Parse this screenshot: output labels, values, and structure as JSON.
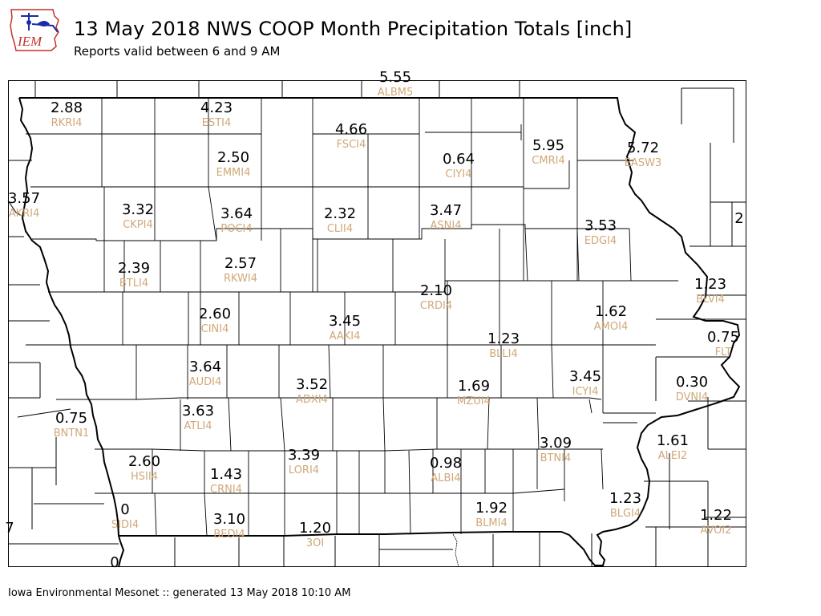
{
  "header": {
    "title": "13 May 2018 NWS COOP Month Precipitation Totals [inch]",
    "subtitle": "Reports valid between 6 and 9 AM"
  },
  "logo": {
    "name": "IEM",
    "icon": "iowa-outline-logo-icon",
    "color": "#1a2aa8",
    "accent": "#c0342a"
  },
  "footer": {
    "text": "Iowa Environmental Mesonet :: generated 13 May 2018 10:10 AM"
  },
  "colors": {
    "value": "#000000",
    "station": "#d0a878"
  },
  "stations": [
    {
      "value": "2.88",
      "id": "RKRI4"
    },
    {
      "value": "4.23",
      "id": "ESTI4"
    },
    {
      "value": "4.66",
      "id": "FSCI4"
    },
    {
      "value": "2.50",
      "id": "EMMI4"
    },
    {
      "value": "0.64",
      "id": "CIYI4"
    },
    {
      "value": "5.95",
      "id": "CMRI4"
    },
    {
      "value": "5.72",
      "id": "EASW3"
    },
    {
      "value": "3.57",
      "id": "AKRI4"
    },
    {
      "value": "3.32",
      "id": "CKPI4"
    },
    {
      "value": "3.64",
      "id": "POCI4"
    },
    {
      "value": "2.32",
      "id": "CLII4"
    },
    {
      "value": "3.47",
      "id": "ASNI4"
    },
    {
      "value": "3.53",
      "id": "EDGI4"
    },
    {
      "value": "2.39",
      "id": "BTLI4"
    },
    {
      "value": "2.57",
      "id": "RKWI4"
    },
    {
      "value": "2.10",
      "id": "CRDI4"
    },
    {
      "value": "1.23",
      "id": "BLVI4"
    },
    {
      "value": "2.60",
      "id": "CINI4"
    },
    {
      "value": "3.45",
      "id": "AAKI4"
    },
    {
      "value": "1.62",
      "id": "AMOI4"
    },
    {
      "value": "1.23",
      "id": "BLLI4"
    },
    {
      "value": "0.75",
      "id": "FLT"
    },
    {
      "value": "3.64",
      "id": "AUDI4"
    },
    {
      "value": "3.52",
      "id": "ADXI4"
    },
    {
      "value": "1.69",
      "id": "MZUI4"
    },
    {
      "value": "3.45",
      "id": "ICYI4"
    },
    {
      "value": "0.30",
      "id": "DVNI4"
    },
    {
      "value": "3.63",
      "id": "ATLI4"
    },
    {
      "value": "0.75",
      "id": "BNTN1"
    },
    {
      "value": "3.09",
      "id": "BTNI4"
    },
    {
      "value": "1.61",
      "id": "ALEI2"
    },
    {
      "value": "2.60",
      "id": "HSII4"
    },
    {
      "value": "1.43",
      "id": "CRNI4"
    },
    {
      "value": "3.39",
      "id": "LORI4"
    },
    {
      "value": "0.98",
      "id": "ALBI4"
    },
    {
      "value": "0",
      "id": "SIDI4"
    },
    {
      "value": "1.92",
      "id": "BLMI4"
    },
    {
      "value": "1.23",
      "id": "BLGI4"
    },
    {
      "value": "1.22",
      "id": "AVOI2"
    },
    {
      "value": "3.10",
      "id": "BEDI4"
    },
    {
      "value": "1.20",
      "id": "3OI"
    },
    {
      "value": "5.55",
      "id": "ALBM5"
    },
    {
      "value": "2",
      "id": ""
    },
    {
      "value": "7",
      "id": ""
    },
    {
      "value": "0",
      "id": ""
    }
  ]
}
